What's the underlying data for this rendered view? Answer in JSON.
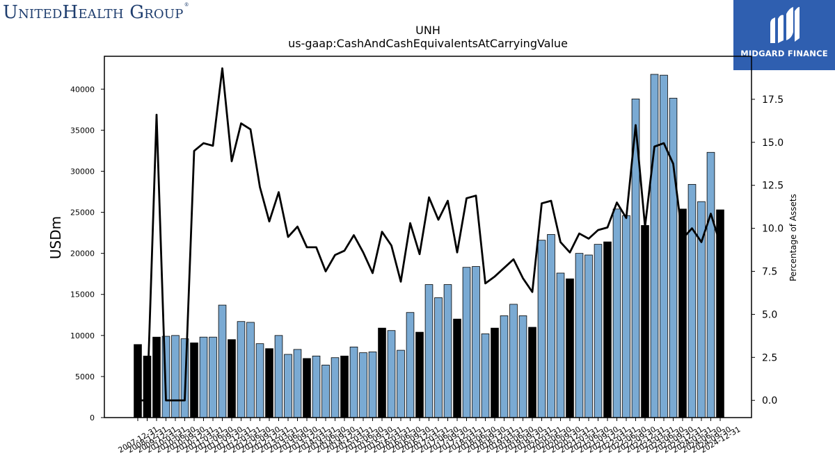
{
  "branding": {
    "left_logo_text": "UnitedHealth Group",
    "left_logo_mark": "®",
    "right_logo_text": "MIDGARD FINANCE",
    "right_logo_icon": "midgard-m-icon",
    "right_logo_bg": "#2f5fb0"
  },
  "chart_data": {
    "type": "bar",
    "title": "UNH",
    "subtitle": "us-gaap:CashAndCashEquivalentsAtCarryingValue",
    "ylabel": "USDm",
    "y2label": "Percentage of Assets",
    "ylim": [
      0,
      44000
    ],
    "y2lim": [
      -1.0,
      20.0
    ],
    "yticks": [
      0,
      5000,
      10000,
      15000,
      20000,
      25000,
      30000,
      35000,
      40000
    ],
    "y2ticks": [
      0.0,
      2.5,
      5.0,
      7.5,
      10.0,
      12.5,
      15.0,
      17.5
    ],
    "y2tick_labels": [
      "0.0",
      "2.5",
      "5.0",
      "7.5",
      "10.0",
      "12.5",
      "15.0",
      "17.5"
    ],
    "bar_colors": {
      "annual": "#000000",
      "quarterly": "#7aaad3"
    },
    "line_color": "#000000",
    "categories": [
      "2007-12-31",
      "2008-12-31",
      "2009-12-31",
      "2010-03-31",
      "2010-06-30",
      "2010-09-30",
      "2010-12-31",
      "2011-03-31",
      "2011-06-30",
      "2011-09-30",
      "2011-12-31",
      "2012-03-31",
      "2012-06-30",
      "2012-09-30",
      "2012-12-31",
      "2013-03-31",
      "2013-06-30",
      "2013-09-30",
      "2013-12-31",
      "2014-03-31",
      "2014-06-30",
      "2014-09-30",
      "2014-12-31",
      "2015-03-31",
      "2015-06-30",
      "2015-09-30",
      "2015-12-31",
      "2016-03-31",
      "2016-06-30",
      "2016-09-30",
      "2016-12-31",
      "2017-03-31",
      "2017-06-30",
      "2017-09-30",
      "2017-12-31",
      "2018-03-31",
      "2018-06-30",
      "2018-09-30",
      "2018-12-31",
      "2019-03-31",
      "2019-06-30",
      "2019-09-30",
      "2019-12-31",
      "2020-03-31",
      "2020-06-30",
      "2020-09-30",
      "2020-12-31",
      "2021-03-31",
      "2021-06-30",
      "2021-09-30",
      "2021-12-31",
      "2022-03-31",
      "2022-06-30",
      "2022-09-30",
      "2022-12-31",
      "2023-03-31",
      "2023-06-30",
      "2023-09-30",
      "2023-12-31",
      "2024-03-31",
      "2024-06-30",
      "2024-09-30",
      "2024-12-31"
    ],
    "series": [
      {
        "kind": "bar",
        "values": [
          8900,
          7500,
          9800,
          9900,
          10000,
          9600,
          9100,
          9800,
          9800,
          13700,
          9500,
          11700,
          11600,
          9000,
          8400,
          10000,
          7700,
          8300,
          7200,
          7500,
          6400,
          7300,
          7500,
          8600,
          7900,
          8000,
          10900,
          10600,
          8200,
          12800,
          10400,
          16200,
          14600,
          16200,
          12000,
          18300,
          18400,
          10200,
          10900,
          12400,
          13800,
          12400,
          11000,
          21600,
          22300,
          17600,
          16900,
          20000,
          19800,
          21100,
          21400,
          25400,
          24600,
          38800,
          23400,
          41800,
          41700,
          38900,
          25400,
          28400,
          26300,
          32300,
          25300
        ]
      },
      {
        "kind": "line",
        "axis": "right",
        "values": [
          0.0,
          0.0,
          16.6,
          0.0,
          0.0,
          0.0,
          14.5,
          14.95,
          14.8,
          19.3,
          13.9,
          16.1,
          15.75,
          12.4,
          10.4,
          12.1,
          9.5,
          10.1,
          8.9,
          8.9,
          7.5,
          8.45,
          8.7,
          9.6,
          8.6,
          7.4,
          9.8,
          9.0,
          6.9,
          10.3,
          8.5,
          11.8,
          10.5,
          11.6,
          8.6,
          11.75,
          11.9,
          6.8,
          7.2,
          7.7,
          8.2,
          7.1,
          6.3,
          11.45,
          11.6,
          9.2,
          8.6,
          9.7,
          9.4,
          9.9,
          10.05,
          11.5,
          10.6,
          16.0,
          10.1,
          14.75,
          14.95,
          13.75,
          9.4,
          10.0,
          9.2,
          10.85,
          9.1
        ]
      }
    ],
    "annual_flags": [
      1,
      1,
      1,
      0,
      0,
      0,
      1,
      0,
      0,
      0,
      1,
      0,
      0,
      0,
      1,
      0,
      0,
      0,
      1,
      0,
      0,
      0,
      1,
      0,
      0,
      0,
      1,
      0,
      0,
      0,
      1,
      0,
      0,
      0,
      1,
      0,
      0,
      0,
      1,
      0,
      0,
      0,
      1,
      0,
      0,
      0,
      1,
      0,
      0,
      0,
      1,
      0,
      0,
      0,
      1,
      0,
      0,
      0,
      1,
      0,
      0,
      0,
      1
    ]
  }
}
